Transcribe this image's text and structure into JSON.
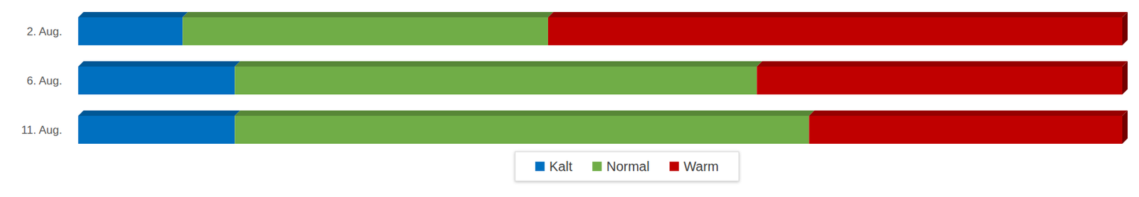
{
  "chart_data": {
    "type": "bar",
    "orientation": "horizontal",
    "stacked": true,
    "categories": [
      "2. Aug.",
      "6. Aug.",
      "11. Aug."
    ],
    "series": [
      {
        "name": "Kalt",
        "color": "#0070c0",
        "values": [
          10,
          15,
          15
        ]
      },
      {
        "name": "Normal",
        "color": "#70ad47",
        "values": [
          35,
          50,
          55
        ]
      },
      {
        "name": "Warm",
        "color": "#c00000",
        "values": [
          55,
          35,
          30
        ]
      }
    ],
    "xlim": [
      0,
      100
    ],
    "tick_labels": "y",
    "grid": false,
    "legend": "bottom"
  }
}
